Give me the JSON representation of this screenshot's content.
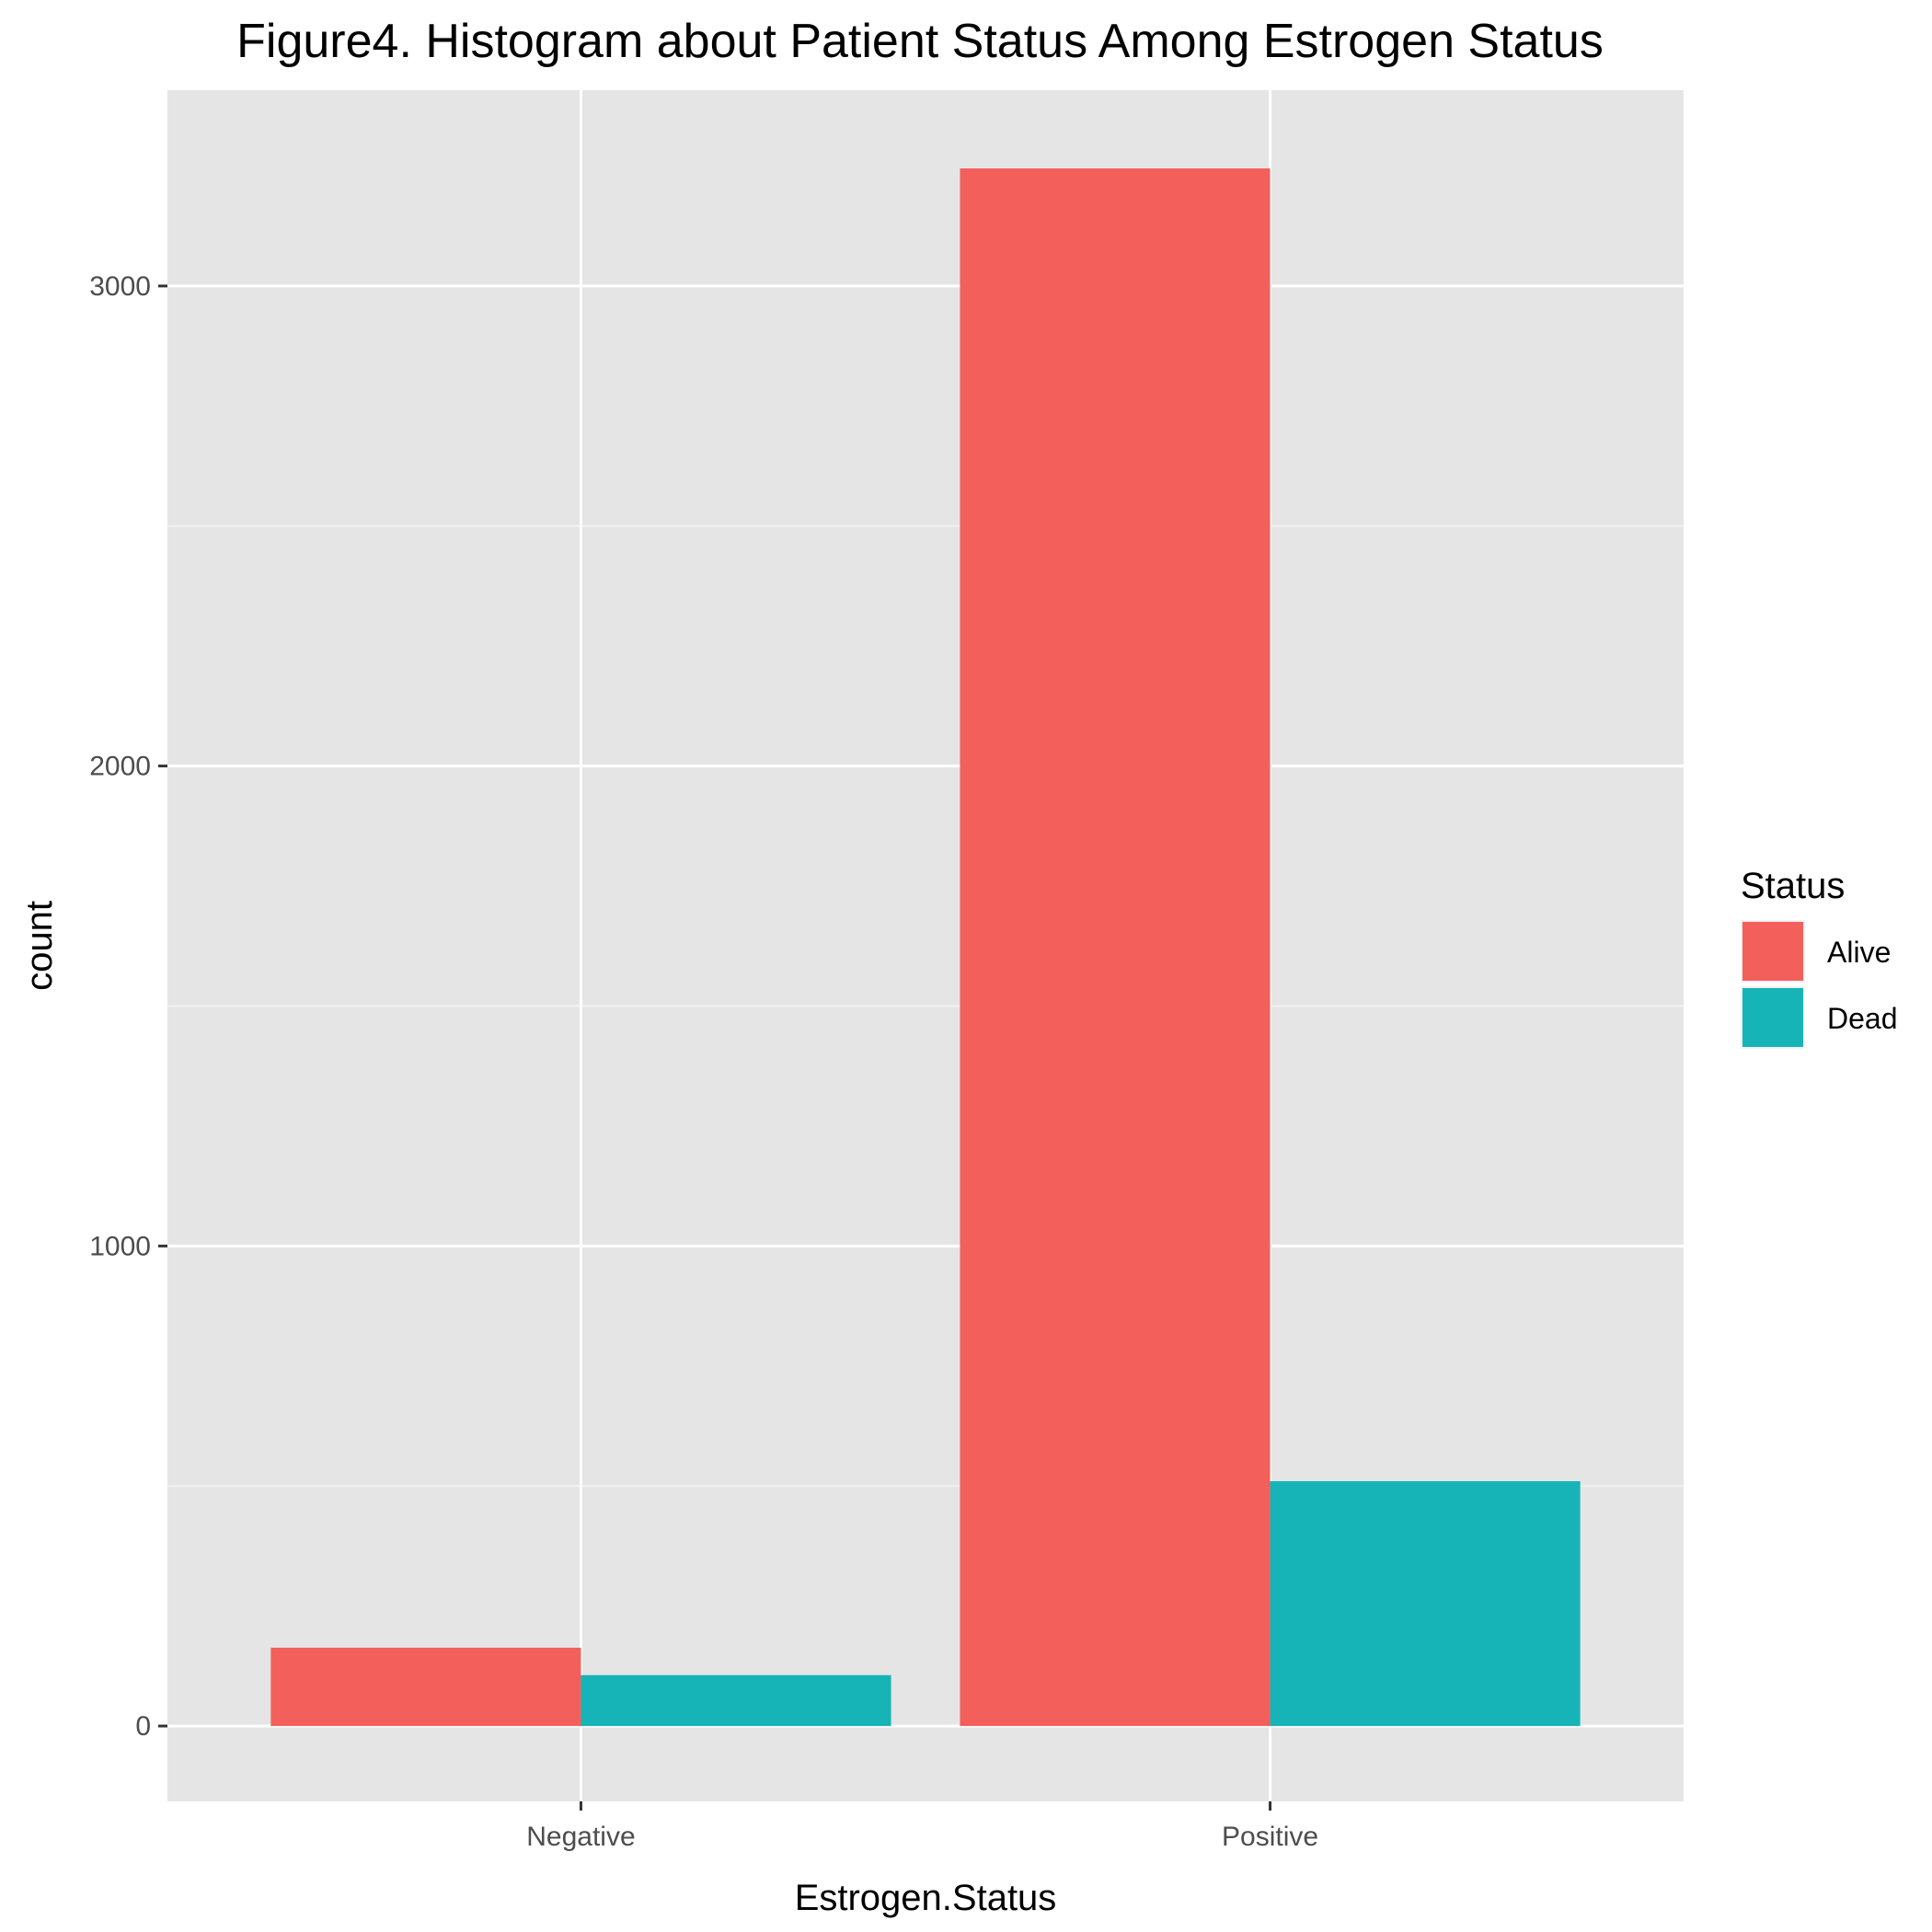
{
  "chart_data": {
    "type": "bar",
    "title": "Figure4. Histogram about Patient Status Among Estrogen Status",
    "xlabel": "Estrogen.Status",
    "ylabel": "count",
    "categories": [
      "Negative",
      "Positive"
    ],
    "series": [
      {
        "name": "Alive",
        "color": "#F35F5B",
        "values": [
          163,
          3245
        ]
      },
      {
        "name": "Dead",
        "color": "#17B4B7",
        "values": [
          106,
          510
        ]
      }
    ],
    "yticks": [
      0,
      1000,
      2000,
      3000
    ],
    "ylim": [
      -157,
      3408
    ],
    "grid": true,
    "legend": {
      "title": "Status",
      "position": "right"
    }
  }
}
